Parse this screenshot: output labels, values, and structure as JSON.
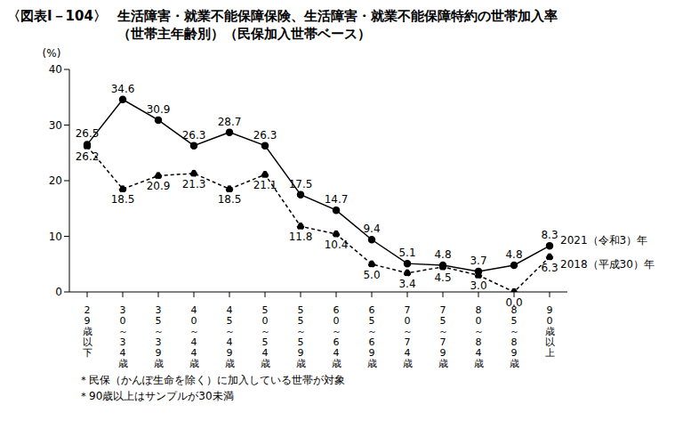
{
  "chart_data": {
    "type": "line",
    "figure_label": "〈図表Ⅰ－104〉",
    "title": "生活障害・就業不能保障保険、生活障害・就業不能保障特約の世帯加入率（世帯主年齢別）（民保加入世帯ベース）",
    "y_label": "(%)",
    "categories": [
      "29歳以下",
      "30～34歳",
      "35～39歳",
      "40～44歳",
      "45～49歳",
      "50～54歳",
      "55～59歳",
      "60～64歳",
      "65～69歳",
      "70～74歳",
      "75～79歳",
      "80～84歳",
      "85～89歳",
      "90歳以上"
    ],
    "series": [
      {
        "name": "2021（令和3）年",
        "color": "#000000",
        "line_style": "solid",
        "marker": "circle",
        "values": [
          26.5,
          34.6,
          30.9,
          26.3,
          28.7,
          26.3,
          17.5,
          14.7,
          9.4,
          5.1,
          4.8,
          3.7,
          4.8,
          8.3
        ]
      },
      {
        "name": "2018（平成30）年",
        "color": "#000000",
        "line_style": "dashed",
        "marker": "circle",
        "values": [
          26.2,
          18.5,
          20.9,
          21.3,
          18.5,
          21.1,
          11.8,
          10.4,
          5.0,
          3.4,
          4.5,
          3.0,
          0.0,
          6.3
        ],
        "value_labels": [
          "26.2",
          "18.5",
          "20.9",
          "21.3",
          "18.5",
          "21.1",
          "11.8",
          "10.4",
          "5.0",
          "3.4",
          "4.5",
          "3.0",
          "0.0",
          "6.3"
        ]
      }
    ],
    "ylim": [
      0,
      40
    ],
    "yticks": [
      0,
      10,
      20,
      30,
      40
    ],
    "grid": false,
    "data_labels": true,
    "notes": [
      "＊民保（かんぽ生命を除く）に加入している世帯が対象",
      "＊90歳以上はサンプルが30未満"
    ]
  }
}
